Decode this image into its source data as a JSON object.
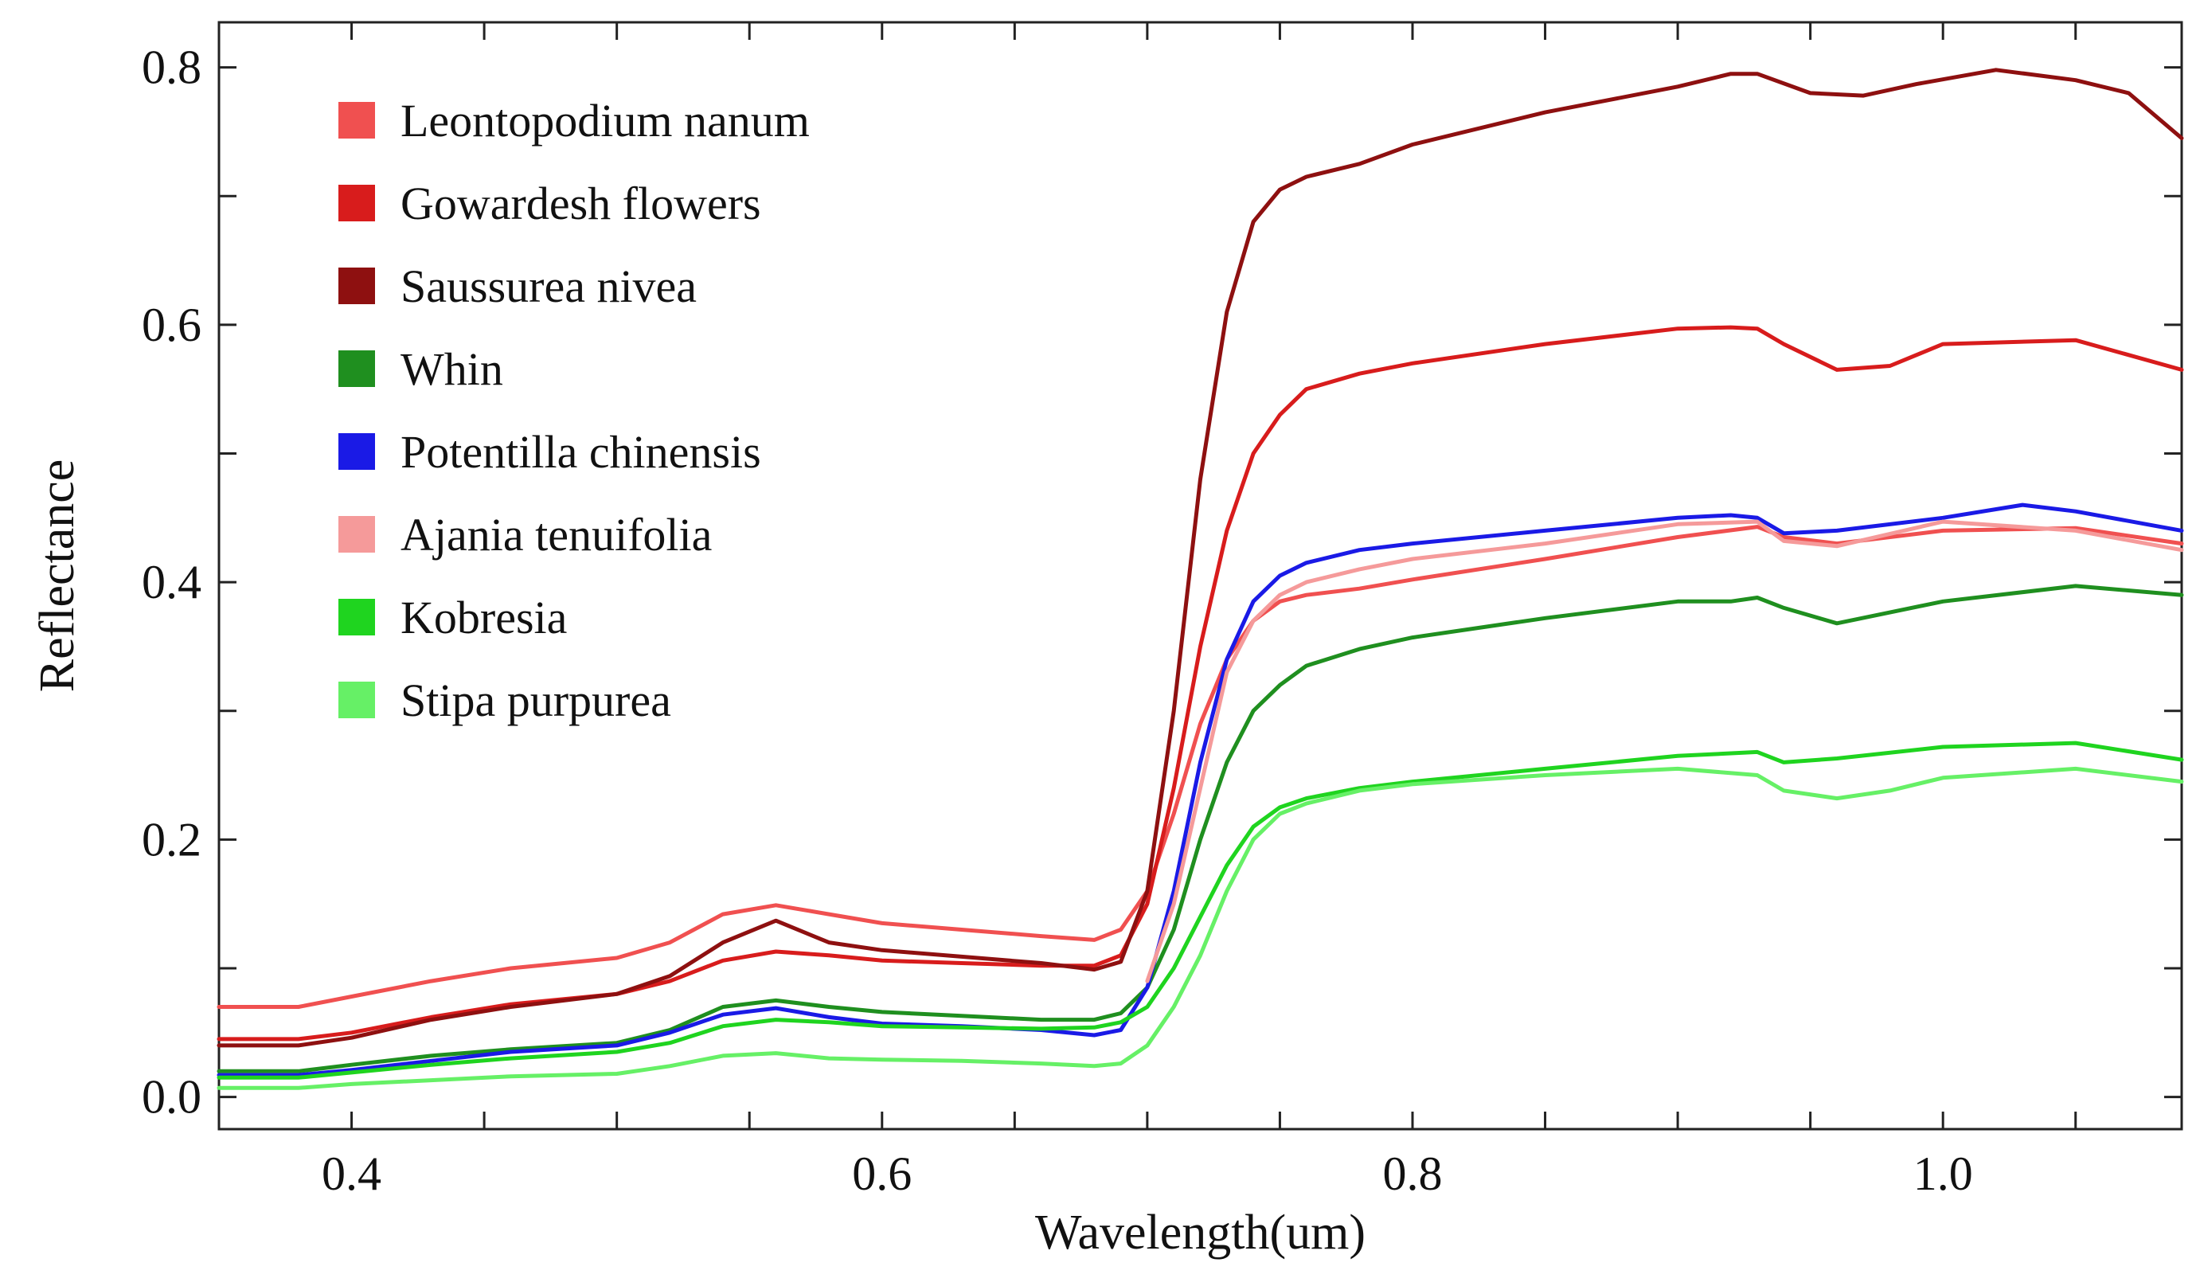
{
  "chart_data": {
    "type": "line",
    "title": "",
    "xlabel": "Wavelength(um)",
    "ylabel": "Reflectance",
    "xlim": [
      0.35,
      1.09
    ],
    "ylim": [
      -0.025,
      0.835
    ],
    "xticks": [
      0.4,
      0.6,
      0.8,
      1.0
    ],
    "xtick_labels": [
      "0.4",
      "0.6",
      "0.8",
      "1.0"
    ],
    "yticks": [
      0.0,
      0.2,
      0.4,
      0.6,
      0.8
    ],
    "ytick_labels": [
      "0.0",
      "0.2",
      "0.4",
      "0.6",
      "0.8"
    ],
    "grid": false,
    "legend_position": "top-left",
    "series": [
      {
        "name": "Leontopodium nanum",
        "color": "#f05050",
        "x": [
          0.35,
          0.38,
          0.4,
          0.43,
          0.46,
          0.5,
          0.52,
          0.54,
          0.56,
          0.58,
          0.6,
          0.63,
          0.66,
          0.68,
          0.69,
          0.7,
          0.71,
          0.72,
          0.73,
          0.74,
          0.75,
          0.76,
          0.78,
          0.8,
          0.85,
          0.9,
          0.93,
          0.94,
          0.96,
          1.0,
          1.05,
          1.09
        ],
        "y": [
          0.07,
          0.07,
          0.078,
          0.09,
          0.1,
          0.108,
          0.12,
          0.142,
          0.149,
          0.142,
          0.135,
          0.13,
          0.125,
          0.122,
          0.13,
          0.16,
          0.22,
          0.29,
          0.34,
          0.37,
          0.385,
          0.39,
          0.395,
          0.402,
          0.418,
          0.435,
          0.443,
          0.435,
          0.43,
          0.44,
          0.442,
          0.43
        ]
      },
      {
        "name": "Gowardesh flowers",
        "color": "#d81c1c",
        "x": [
          0.35,
          0.38,
          0.4,
          0.43,
          0.46,
          0.5,
          0.52,
          0.54,
          0.56,
          0.58,
          0.6,
          0.63,
          0.66,
          0.68,
          0.69,
          0.7,
          0.71,
          0.72,
          0.73,
          0.74,
          0.75,
          0.76,
          0.78,
          0.8,
          0.85,
          0.9,
          0.92,
          0.93,
          0.94,
          0.96,
          0.98,
          1.0,
          1.05,
          1.09
        ],
        "y": [
          0.045,
          0.045,
          0.05,
          0.062,
          0.072,
          0.08,
          0.09,
          0.106,
          0.113,
          0.11,
          0.106,
          0.104,
          0.102,
          0.102,
          0.11,
          0.15,
          0.24,
          0.35,
          0.44,
          0.5,
          0.53,
          0.55,
          0.562,
          0.57,
          0.585,
          0.597,
          0.598,
          0.597,
          0.585,
          0.565,
          0.568,
          0.585,
          0.588,
          0.565
        ]
      },
      {
        "name": "Saussurea nivea",
        "color": "#8e1010",
        "x": [
          0.35,
          0.38,
          0.4,
          0.43,
          0.46,
          0.5,
          0.52,
          0.54,
          0.56,
          0.58,
          0.6,
          0.63,
          0.66,
          0.68,
          0.69,
          0.7,
          0.71,
          0.72,
          0.73,
          0.74,
          0.75,
          0.76,
          0.78,
          0.8,
          0.85,
          0.9,
          0.92,
          0.93,
          0.95,
          0.97,
          0.99,
          1.02,
          1.05,
          1.07,
          1.09
        ],
        "y": [
          0.04,
          0.04,
          0.046,
          0.06,
          0.07,
          0.08,
          0.094,
          0.12,
          0.137,
          0.12,
          0.114,
          0.109,
          0.104,
          0.099,
          0.105,
          0.16,
          0.3,
          0.48,
          0.61,
          0.68,
          0.705,
          0.715,
          0.725,
          0.74,
          0.765,
          0.785,
          0.795,
          0.795,
          0.78,
          0.778,
          0.787,
          0.798,
          0.79,
          0.78,
          0.745
        ]
      },
      {
        "name": "Whin",
        "color": "#1f8f1f",
        "x": [
          0.35,
          0.38,
          0.4,
          0.43,
          0.46,
          0.5,
          0.52,
          0.54,
          0.56,
          0.58,
          0.6,
          0.63,
          0.66,
          0.68,
          0.69,
          0.7,
          0.71,
          0.72,
          0.73,
          0.74,
          0.75,
          0.76,
          0.78,
          0.8,
          0.85,
          0.9,
          0.92,
          0.93,
          0.94,
          0.96,
          1.0,
          1.05,
          1.09
        ],
        "y": [
          0.02,
          0.02,
          0.025,
          0.032,
          0.037,
          0.042,
          0.052,
          0.07,
          0.075,
          0.07,
          0.066,
          0.063,
          0.06,
          0.06,
          0.065,
          0.085,
          0.13,
          0.2,
          0.26,
          0.3,
          0.32,
          0.335,
          0.348,
          0.357,
          0.372,
          0.385,
          0.385,
          0.388,
          0.38,
          0.368,
          0.385,
          0.397,
          0.39
        ]
      },
      {
        "name": "Potentilla chinensis",
        "color": "#1a1ae6",
        "x": [
          0.35,
          0.38,
          0.4,
          0.43,
          0.46,
          0.5,
          0.52,
          0.54,
          0.56,
          0.58,
          0.6,
          0.63,
          0.66,
          0.68,
          0.69,
          0.7,
          0.71,
          0.72,
          0.73,
          0.74,
          0.75,
          0.76,
          0.78,
          0.8,
          0.85,
          0.9,
          0.92,
          0.93,
          0.94,
          0.96,
          1.0,
          1.03,
          1.05,
          1.09
        ],
        "y": [
          0.017,
          0.017,
          0.021,
          0.028,
          0.035,
          0.04,
          0.05,
          0.064,
          0.069,
          0.062,
          0.057,
          0.055,
          0.052,
          0.048,
          0.052,
          0.085,
          0.16,
          0.26,
          0.34,
          0.385,
          0.405,
          0.415,
          0.425,
          0.43,
          0.44,
          0.45,
          0.452,
          0.45,
          0.438,
          0.44,
          0.45,
          0.46,
          0.455,
          0.44
        ]
      },
      {
        "name": "Ajania tenuifolia",
        "color": "#f59a9a",
        "x": [
          0.7,
          0.71,
          0.72,
          0.73,
          0.74,
          0.75,
          0.76,
          0.78,
          0.8,
          0.85,
          0.9,
          0.93,
          0.94,
          0.96,
          1.0,
          1.05,
          1.09
        ],
        "y": [
          0.09,
          0.15,
          0.24,
          0.33,
          0.37,
          0.39,
          0.4,
          0.41,
          0.418,
          0.43,
          0.445,
          0.447,
          0.432,
          0.428,
          0.447,
          0.44,
          0.425
        ]
      },
      {
        "name": "Kobresia",
        "color": "#1fd41f",
        "x": [
          0.35,
          0.38,
          0.4,
          0.43,
          0.46,
          0.5,
          0.52,
          0.54,
          0.56,
          0.58,
          0.6,
          0.63,
          0.66,
          0.68,
          0.69,
          0.7,
          0.71,
          0.72,
          0.73,
          0.74,
          0.75,
          0.76,
          0.78,
          0.8,
          0.85,
          0.9,
          0.93,
          0.94,
          0.96,
          1.0,
          1.05,
          1.09
        ],
        "y": [
          0.015,
          0.015,
          0.019,
          0.025,
          0.03,
          0.035,
          0.042,
          0.055,
          0.06,
          0.058,
          0.055,
          0.054,
          0.053,
          0.054,
          0.058,
          0.07,
          0.1,
          0.14,
          0.18,
          0.21,
          0.225,
          0.232,
          0.24,
          0.245,
          0.255,
          0.265,
          0.268,
          0.26,
          0.263,
          0.272,
          0.275,
          0.262
        ]
      },
      {
        "name": "Stipa purpurea",
        "color": "#66f066",
        "x": [
          0.35,
          0.38,
          0.4,
          0.43,
          0.46,
          0.5,
          0.52,
          0.54,
          0.56,
          0.58,
          0.6,
          0.63,
          0.66,
          0.68,
          0.69,
          0.7,
          0.71,
          0.72,
          0.73,
          0.74,
          0.75,
          0.76,
          0.78,
          0.8,
          0.85,
          0.9,
          0.93,
          0.94,
          0.96,
          0.98,
          1.0,
          1.05,
          1.09
        ],
        "y": [
          0.007,
          0.007,
          0.01,
          0.013,
          0.016,
          0.018,
          0.024,
          0.032,
          0.034,
          0.03,
          0.029,
          0.028,
          0.026,
          0.024,
          0.026,
          0.04,
          0.07,
          0.11,
          0.16,
          0.2,
          0.22,
          0.228,
          0.238,
          0.243,
          0.25,
          0.255,
          0.25,
          0.238,
          0.232,
          0.238,
          0.248,
          0.255,
          0.245
        ]
      }
    ]
  }
}
